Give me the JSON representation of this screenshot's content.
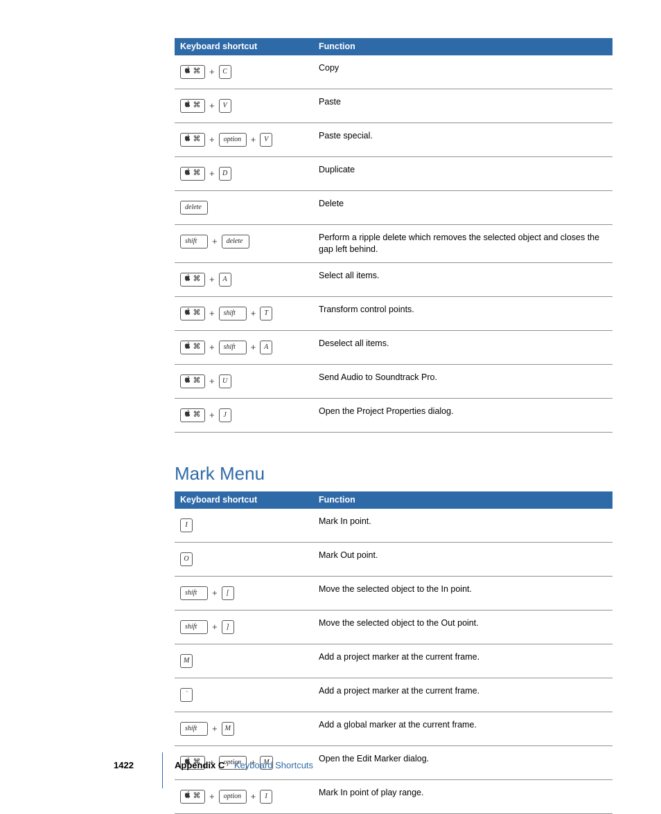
{
  "colors": {
    "header_bg": "#2f6aa8",
    "header_fg": "#ffffff",
    "row_border": "#909090",
    "heading": "#2f6aa8",
    "text": "#000000"
  },
  "table1": {
    "headers": [
      "Keyboard shortcut",
      "Function"
    ],
    "rows": [
      {
        "keys": [
          [
            "cmd"
          ],
          [
            "C"
          ]
        ],
        "func": "Copy"
      },
      {
        "keys": [
          [
            "cmd"
          ],
          [
            "V"
          ]
        ],
        "func": "Paste"
      },
      {
        "keys": [
          [
            "cmd"
          ],
          [
            "option",
            "wide"
          ],
          [
            "V"
          ]
        ],
        "func": "Paste special."
      },
      {
        "keys": [
          [
            "cmd"
          ],
          [
            "D"
          ]
        ],
        "func": "Duplicate"
      },
      {
        "keys": [
          [
            "delete",
            "wide"
          ]
        ],
        "func": "Delete"
      },
      {
        "keys": [
          [
            "shift",
            "wide"
          ],
          [
            "delete",
            "wide"
          ]
        ],
        "func": "Perform a ripple delete which removes the selected object and closes the gap left behind."
      },
      {
        "keys": [
          [
            "cmd"
          ],
          [
            "A"
          ]
        ],
        "func": "Select all items."
      },
      {
        "keys": [
          [
            "cmd"
          ],
          [
            "shift",
            "wide"
          ],
          [
            "T"
          ]
        ],
        "func": "Transform control points."
      },
      {
        "keys": [
          [
            "cmd"
          ],
          [
            "shift",
            "wide"
          ],
          [
            "A"
          ]
        ],
        "func": "Deselect all items."
      },
      {
        "keys": [
          [
            "cmd"
          ],
          [
            "U"
          ]
        ],
        "func": "Send Audio to Soundtrack Pro."
      },
      {
        "keys": [
          [
            "cmd"
          ],
          [
            "J"
          ]
        ],
        "func": "Open the Project Properties dialog."
      }
    ]
  },
  "section_heading": "Mark Menu",
  "table2": {
    "headers": [
      "Keyboard shortcut",
      "Function"
    ],
    "rows": [
      {
        "keys": [
          [
            "I"
          ]
        ],
        "func": "Mark In point."
      },
      {
        "keys": [
          [
            "O"
          ]
        ],
        "func": "Mark Out point."
      },
      {
        "keys": [
          [
            "shift",
            "wide"
          ],
          [
            "["
          ]
        ],
        "func": "Move the selected object to the In point."
      },
      {
        "keys": [
          [
            "shift",
            "wide"
          ],
          [
            "]"
          ]
        ],
        "func": "Move the selected object to the Out point."
      },
      {
        "keys": [
          [
            "M"
          ]
        ],
        "func": "Add a project marker at the current frame."
      },
      {
        "keys": [
          [
            "`"
          ]
        ],
        "func": "Add a project marker at the current frame."
      },
      {
        "keys": [
          [
            "shift",
            "wide"
          ],
          [
            "M"
          ]
        ],
        "func": "Add a global marker at the current frame."
      },
      {
        "keys": [
          [
            "cmd"
          ],
          [
            "option",
            "wide"
          ],
          [
            "M"
          ]
        ],
        "func": "Open the Edit Marker dialog."
      },
      {
        "keys": [
          [
            "cmd"
          ],
          [
            "option",
            "wide"
          ],
          [
            "I"
          ]
        ],
        "func": "Mark In point of play range."
      }
    ]
  },
  "footer": {
    "page": "1422",
    "appendix": "Appendix C",
    "title": "Keyboard Shortcuts"
  }
}
